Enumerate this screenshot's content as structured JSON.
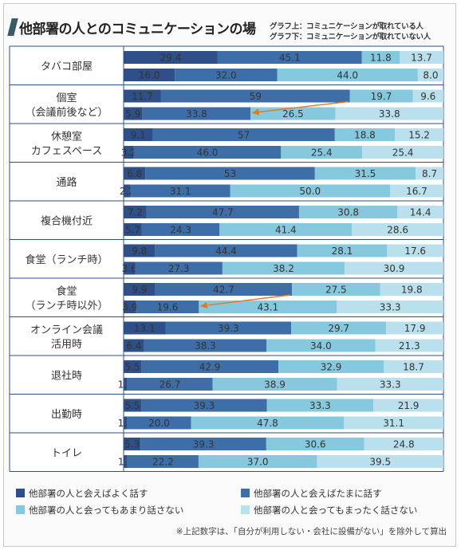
{
  "title": "他部署の人とのコミュニケーションの場",
  "note_top": "グラフ上：コミュニケーションが取れている人",
  "note_bottom": "グラフ下：コミュニケーションが取れていない人",
  "footnote": "※上記数字は、「自分が利用しない・会社に設備がない」を除外して算出",
  "colors": {
    "often": "#2e4f88",
    "sometimes": "#3e6ea8",
    "rarely": "#86c8de",
    "never": "#b9e0ec",
    "arrow": "#e07a20",
    "grid": "#2e4f88"
  },
  "chart_data": {
    "type": "bar",
    "orientation": "horizontal",
    "stacked": true,
    "normalized_percent": true,
    "series_names": [
      "他部署の人と会えばよく話す",
      "他部署の人と会えばたまに話す",
      "他部署の人と会ってもあまり話さない",
      "他部署の人と会ってもまったく話さない"
    ],
    "legend_position": "bottom",
    "categories": [
      {
        "label": [
          "タバコ部屋"
        ],
        "top": [
          29.4,
          45.1,
          11.8,
          13.7
        ],
        "bottom": [
          16.0,
          32.0,
          44.0,
          8.0
        ]
      },
      {
        "label": [
          "個室",
          "（会議前後など）"
        ],
        "top": [
          11.7,
          59,
          19.7,
          9.6
        ],
        "bottom": [
          5.9,
          33.8,
          26.5,
          33.8
        ],
        "arrow": true
      },
      {
        "label": [
          "休憩室",
          "カフェスペース"
        ],
        "top": [
          9.1,
          57,
          18.8,
          15.2
        ],
        "bottom": [
          3.2,
          46.0,
          25.4,
          25.4
        ]
      },
      {
        "label": [
          "通路"
        ],
        "top": [
          6.8,
          53,
          31.5,
          8.7
        ],
        "bottom": [
          2.2,
          31.1,
          50.0,
          16.7
        ]
      },
      {
        "label": [
          "複合機付近"
        ],
        "top": [
          7.2,
          47.7,
          30.8,
          14.4
        ],
        "bottom": [
          5.7,
          24.3,
          41.4,
          28.6
        ]
      },
      {
        "label": [
          "食堂（ランチ時）"
        ],
        "top": [
          9.8,
          44.4,
          28.1,
          17.6
        ],
        "bottom": [
          3.6,
          27.3,
          38.2,
          30.9
        ]
      },
      {
        "label": [
          "食堂",
          "（ランチ時以外）"
        ],
        "top": [
          9.9,
          42.7,
          27.5,
          19.8
        ],
        "bottom": [
          3.9,
          19.6,
          43.1,
          33.3
        ],
        "arrow": true
      },
      {
        "label": [
          "オンライン会議",
          "活用時"
        ],
        "top": [
          13.1,
          39.3,
          29.7,
          17.9
        ],
        "bottom": [
          6.4,
          38.3,
          34.0,
          21.3
        ]
      },
      {
        "label": [
          "退社時"
        ],
        "top": [
          5.5,
          42.9,
          32.9,
          18.7
        ],
        "bottom": [
          1.1,
          26.7,
          38.9,
          33.3
        ]
      },
      {
        "label": [
          "出勤時"
        ],
        "top": [
          5.5,
          39.3,
          33.3,
          21.9
        ],
        "bottom": [
          1.1,
          20.0,
          47.8,
          31.1
        ]
      },
      {
        "label": [
          "トイレ"
        ],
        "top": [
          5.3,
          39.3,
          30.6,
          24.8
        ],
        "bottom": [
          1.2,
          22.2,
          37.0,
          39.5
        ]
      }
    ],
    "value_labels": [
      [
        "29.4",
        "45.1",
        "11.8",
        "13.7",
        "16.0",
        "32.0",
        "44.0",
        "8.0"
      ],
      [
        "11.7",
        "59",
        "19.7",
        "9.6",
        "5.9",
        "33.8",
        "26.5",
        "33.8"
      ],
      [
        "9.1",
        "57",
        "18.8",
        "15.2",
        "3.2",
        "46.0",
        "25.4",
        "25.4"
      ],
      [
        "6.8",
        "53",
        "31.5",
        "8.7",
        "2.2",
        "31.1",
        "50.0",
        "16.7"
      ],
      [
        "7.2",
        "47.7",
        "30.8",
        "14.4",
        "5.7",
        "24.3",
        "41.4",
        "28.6"
      ],
      [
        "9.8",
        "44.4",
        "28.1",
        "17.6",
        "3.6",
        "27.3",
        "38.2",
        "30.9"
      ],
      [
        "9.9",
        "42.7",
        "27.5",
        "19.8",
        "3.9",
        "19.6",
        "43.1",
        "33.3"
      ],
      [
        "13.1",
        "39.3",
        "29.7",
        "17.9",
        "6.4",
        "38.3",
        "34.0",
        "21.3"
      ],
      [
        "5.5",
        "42.9",
        "32.9",
        "18.7",
        "1.1",
        "26.7",
        "38.9",
        "33.3"
      ],
      [
        "5.5",
        "39.3",
        "33.3",
        "21.9",
        "1.1",
        "20.0",
        "47.8",
        "31.1"
      ],
      [
        "5.3",
        "39.3",
        "30.6",
        "24.8",
        "1.2",
        "22.2",
        "37.0",
        "39.5"
      ]
    ]
  }
}
